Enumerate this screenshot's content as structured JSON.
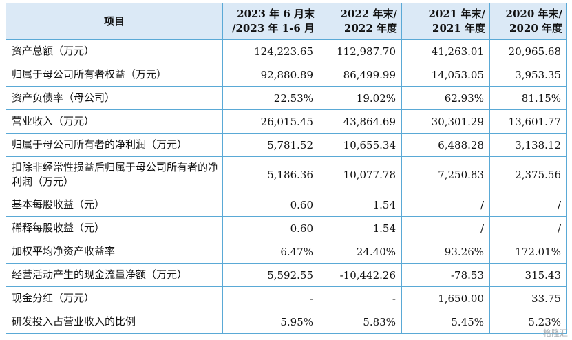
{
  "header": {
    "item": "项目",
    "col1": [
      "2023 年 6 月末",
      "/2023 年 1-6 月"
    ],
    "col2": [
      "2022 年末/",
      "2022 年度"
    ],
    "col3": [
      "2021 年末/",
      "2021 年度"
    ],
    "col4": [
      "2020 年末/",
      "2020 年度"
    ]
  },
  "rows": [
    {
      "label": "资产总额（万元）",
      "v1": "124,223.65",
      "v2": "112,987.70",
      "v3": "41,263.01",
      "v4": "20,965.68"
    },
    {
      "label": "归属于母公司所有者权益（万元）",
      "v1": "92,880.89",
      "v2": "86,499.99",
      "v3": "14,053.05",
      "v4": "3,953.35"
    },
    {
      "label": "资产负债率（母公司）",
      "v1": "22.53%",
      "v2": "19.02%",
      "v3": "62.93%",
      "v4": "81.15%"
    },
    {
      "label": "营业收入（万元）",
      "v1": "26,015.45",
      "v2": "43,864.69",
      "v3": "30,301.29",
      "v4": "13,601.77"
    },
    {
      "label": "归属于母公司所有者的净利润（万元）",
      "v1": "5,781.52",
      "v2": "10,655.34",
      "v3": "6,488.28",
      "v4": "3,138.12"
    },
    {
      "label": "扣除非经常性损益后归属于母公司所有者的净利润（万元）",
      "v1": "5,186.36",
      "v2": "10,077.78",
      "v3": "7,250.83",
      "v4": "2,375.56"
    },
    {
      "label": "基本每股收益（元）",
      "v1": "0.60",
      "v2": "1.54",
      "v3": "/",
      "v4": "/"
    },
    {
      "label": "稀释每股收益（元）",
      "v1": "0.60",
      "v2": "1.54",
      "v3": "/",
      "v4": "/"
    },
    {
      "label": "加权平均净资产收益率",
      "v1": "6.47%",
      "v2": "24.40%",
      "v3": "93.26%",
      "v4": "172.01%"
    },
    {
      "label": "经营活动产生的现金流量净额（万元）",
      "v1": "5,592.55",
      "v2": "-10,442.26",
      "v3": "-78.53",
      "v4": "315.43"
    },
    {
      "label": "现金分红（万元）",
      "v1": "-",
      "v2": "-",
      "v3": "1,650.00",
      "v4": "33.75"
    },
    {
      "label": "研发投入占营业收入的比例",
      "v1": "5.95%",
      "v2": "5.83%",
      "v3": "5.45%",
      "v4": "5.23%"
    }
  ],
  "watermark": "格隆汇",
  "colors": {
    "header_bg": "#dbe9f6",
    "border": "#5aa9d6"
  }
}
